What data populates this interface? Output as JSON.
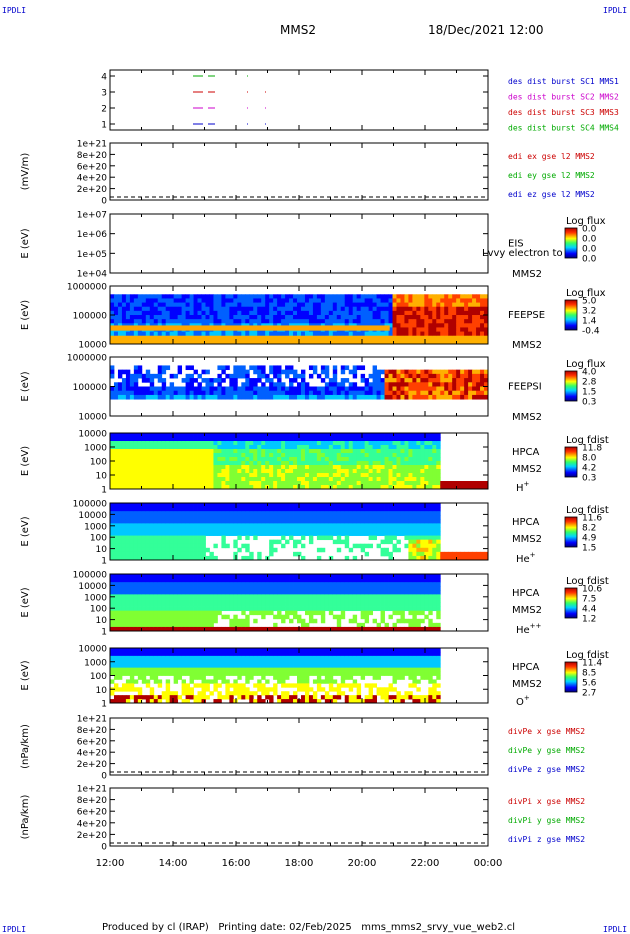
{
  "header": {
    "corner_label": "IPDLI",
    "spacecraft": "MMS2",
    "datetime": "18/Dec/2021 12:00"
  },
  "footer": {
    "text": "Produced by cl (IRAP)   Printing date: 02/Feb/2025   mms_mms2_srvy_vue_web2.cl"
  },
  "colors": {
    "c1": "#0000cc",
    "c2": "#cc0000",
    "c3": "#cc00cc",
    "c4": "#00aa00",
    "ex": "#cc0000",
    "ey": "#00aa00",
    "ez": "#0000cc"
  },
  "chart_data": {
    "type": "heatmap",
    "x_axis": {
      "ticks": [
        "12:00",
        "14:00",
        "16:00",
        "18:00",
        "20:00",
        "22:00",
        "00:00"
      ],
      "range": [
        "12:00",
        "00:00"
      ]
    },
    "panels": [
      {
        "id": "burst",
        "type": "line",
        "yticks": [
          "4",
          "3",
          "2",
          "1"
        ],
        "legend": [
          "des dist burst SC1 MMS1",
          "des dist burst SC2 MMS2",
          "des dist burst SC3 MMS3",
          "des dist burst SC4 MMS4"
        ]
      },
      {
        "id": "edi",
        "type": "line",
        "ylabel": "(mV/m)",
        "yticks": [
          "1e+21",
          "8e+20",
          "6e+20",
          "4e+20",
          "2e+20",
          "0"
        ],
        "legend": [
          "edi ex gse l2 MMS2",
          "edi ey gse l2 MMS2",
          "edi ez gse l2 MMS2"
        ]
      },
      {
        "id": "eis",
        "type": "heatmap",
        "ylabel": "E (eV)",
        "yticks": [
          "1e+07",
          "1e+06",
          "1e+05",
          "1e+04"
        ],
        "instrument": [
          "EIS",
          "MMS2"
        ],
        "overlay_text": "Lvvy electron to",
        "cbar_title": "Log flux",
        "cbar_ticks": [
          "0.0",
          "0.0",
          "0.0",
          "0.0"
        ]
      },
      {
        "id": "feepse",
        "type": "heatmap",
        "ylabel": "E (eV)",
        "yticks": [
          "1000000",
          "100000",
          "10000"
        ],
        "instrument": [
          "FEEPSE",
          "MMS2"
        ],
        "cbar_title": "Log flux",
        "cbar_ticks": [
          "5.0",
          "3.2",
          "1.4",
          "-0.4"
        ]
      },
      {
        "id": "feepsi",
        "type": "heatmap",
        "ylabel": "E (eV)",
        "yticks": [
          "1000000",
          "100000",
          "10000"
        ],
        "instrument": [
          "FEEPSI",
          "MMS2"
        ],
        "cbar_title": "Log flux",
        "cbar_ticks": [
          "4.0",
          "2.8",
          "1.5",
          "0.3"
        ]
      },
      {
        "id": "hpca_h",
        "type": "heatmap",
        "ylabel": "E (eV)",
        "yticks": [
          "10000",
          "1000",
          "100",
          "10",
          "1"
        ],
        "instrument": [
          "HPCA",
          "MMS2"
        ],
        "species": "H",
        "species_sup": "+",
        "cbar_title": "Log fdist",
        "cbar_ticks": [
          "11.8",
          "8.0",
          "4.2",
          "0.3"
        ]
      },
      {
        "id": "hpca_he",
        "type": "heatmap",
        "ylabel": "E (eV)",
        "yticks": [
          "100000",
          "10000",
          "1000",
          "100",
          "10",
          "1"
        ],
        "instrument": [
          "HPCA",
          "MMS2"
        ],
        "species": "He",
        "species_sup": "+",
        "cbar_title": "Log fdist",
        "cbar_ticks": [
          "11.6",
          "8.2",
          "4.9",
          "1.5"
        ]
      },
      {
        "id": "hpca_he2",
        "type": "heatmap",
        "ylabel": "E (eV)",
        "yticks": [
          "100000",
          "10000",
          "1000",
          "100",
          "10",
          "1"
        ],
        "instrument": [
          "HPCA",
          "MMS2"
        ],
        "species": "He",
        "species_sup": "++",
        "cbar_title": "Log fdist",
        "cbar_ticks": [
          "10.6",
          "7.5",
          "4.4",
          "1.2"
        ]
      },
      {
        "id": "hpca_o",
        "type": "heatmap",
        "ylabel": "E (eV)",
        "yticks": [
          "10000",
          "1000",
          "100",
          "10",
          "1"
        ],
        "instrument": [
          "HPCA",
          "MMS2"
        ],
        "species": "O",
        "species_sup": "+",
        "cbar_title": "Log fdist",
        "cbar_ticks": [
          "11.4",
          "8.5",
          "5.6",
          "2.7"
        ]
      },
      {
        "id": "divpe",
        "type": "line",
        "ylabel": "(nPa/km)",
        "yticks": [
          "1e+21",
          "8e+20",
          "6e+20",
          "4e+20",
          "2e+20",
          "0"
        ],
        "legend": [
          "divPe x gse MMS2",
          "divPe y gse MMS2",
          "divPe z gse MMS2"
        ]
      },
      {
        "id": "divpi",
        "type": "line",
        "ylabel": "(nPa/km)",
        "yticks": [
          "1e+21",
          "8e+20",
          "6e+20",
          "4e+20",
          "2e+20",
          "0"
        ],
        "legend": [
          "divPi x gse MMS2",
          "divPi y gse MMS2",
          "divPi z gse MMS2"
        ]
      }
    ]
  }
}
